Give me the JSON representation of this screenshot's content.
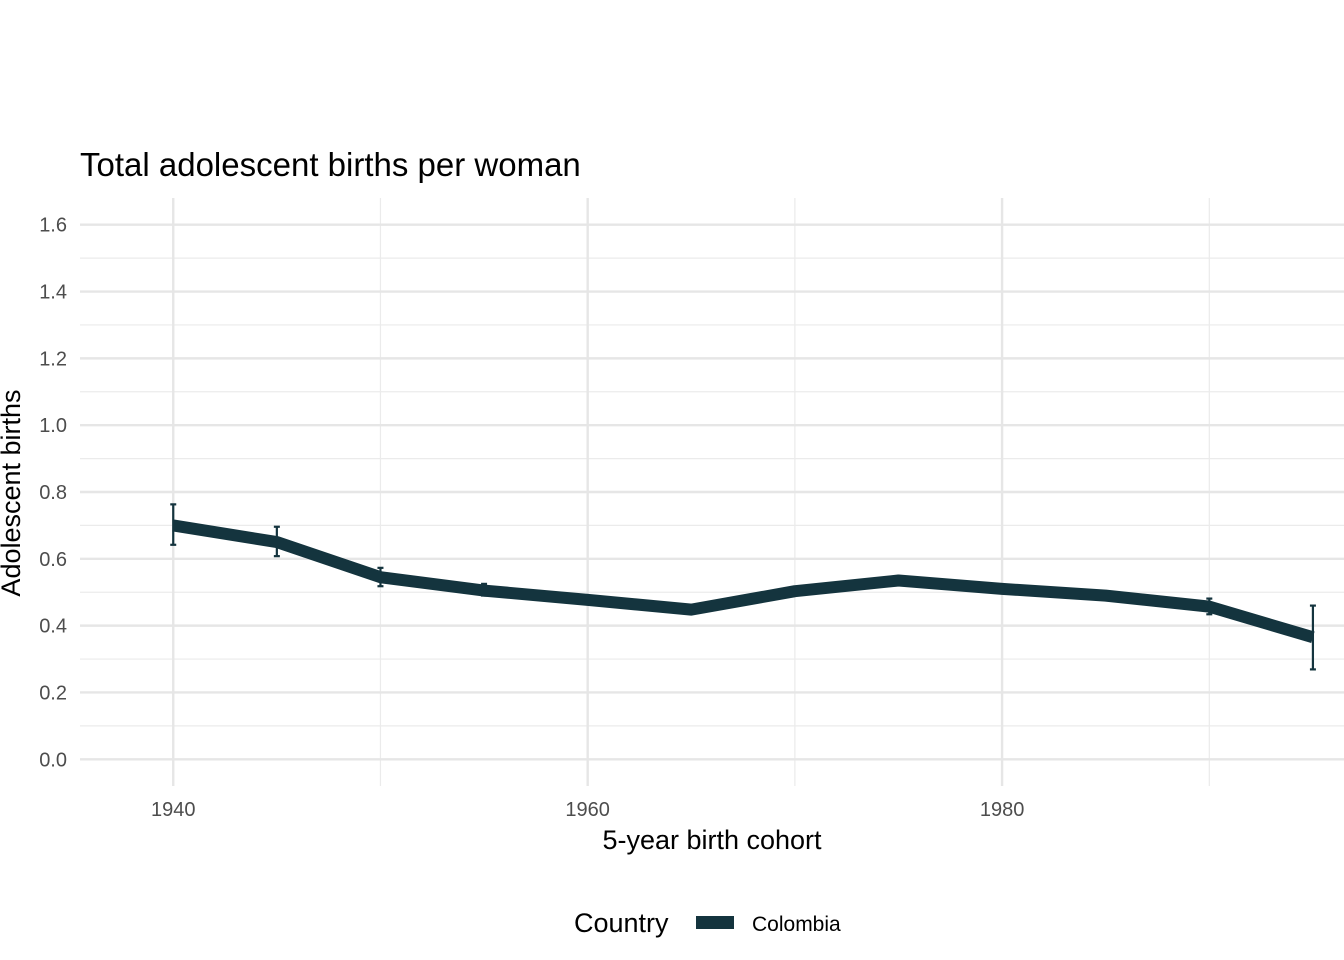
{
  "chart_data": {
    "type": "line",
    "title": "Total adolescent births per woman",
    "xlabel": "5-year birth cohort",
    "ylabel": "Adolescent births",
    "xlim": [
      1935.5,
      1996.5
    ],
    "ylim": [
      -0.08,
      1.68
    ],
    "x_ticks": [
      1940,
      1960,
      1980
    ],
    "x_ticks_minor": [
      1950,
      1970,
      1990
    ],
    "y_ticks": [
      0.0,
      0.2,
      0.4,
      0.6,
      0.8,
      1.0,
      1.2,
      1.4,
      1.6
    ],
    "y_tick_labels": [
      "0.0",
      "0.2",
      "0.4",
      "0.6",
      "0.8",
      "1.0",
      "1.2",
      "1.4",
      "1.6"
    ],
    "x_tick_labels": [
      "1940",
      "1960",
      "1980"
    ],
    "grid": true,
    "legend": {
      "title": "Country",
      "position": "bottom"
    },
    "series": [
      {
        "name": "Colombia",
        "color": "#14343e",
        "x": [
          1940,
          1945,
          1950,
          1955,
          1960,
          1965,
          1970,
          1975,
          1980,
          1985,
          1990,
          1995
        ],
        "y": [
          0.7,
          0.65,
          0.545,
          0.505,
          0.477,
          0.448,
          0.503,
          0.535,
          0.51,
          0.49,
          0.457,
          0.365
        ],
        "error_low": [
          0.642,
          0.608,
          0.518,
          0.49,
          0.468,
          0.44,
          0.494,
          0.527,
          0.5,
          0.478,
          0.434,
          0.269
        ],
        "error_high": [
          0.763,
          0.696,
          0.573,
          0.525,
          0.486,
          0.456,
          0.512,
          0.543,
          0.52,
          0.503,
          0.481,
          0.46
        ]
      }
    ]
  }
}
